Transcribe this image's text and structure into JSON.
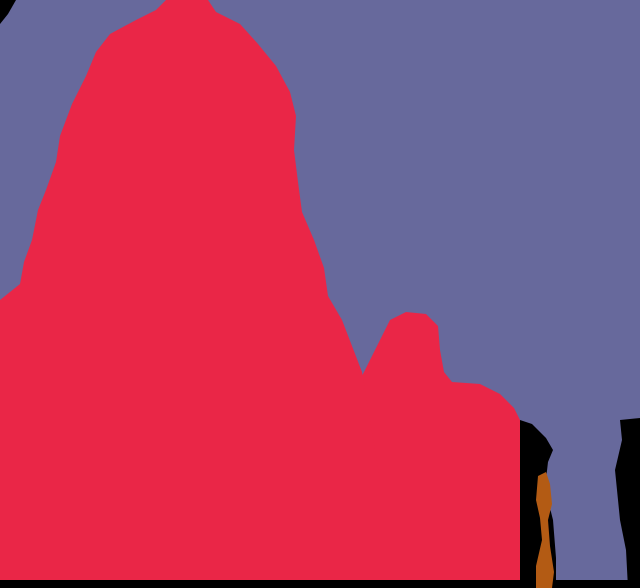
{
  "segmentation": {
    "background_color": "#000000",
    "regions": [
      {
        "label": "background",
        "color": "#67699C"
      },
      {
        "label": "person-large",
        "color": "#EA2647"
      },
      {
        "label": "person-small",
        "color": "#EA2647"
      },
      {
        "label": "dark-pole",
        "color": "#000000"
      },
      {
        "label": "orange-object",
        "color": "#B35B14"
      }
    ]
  }
}
